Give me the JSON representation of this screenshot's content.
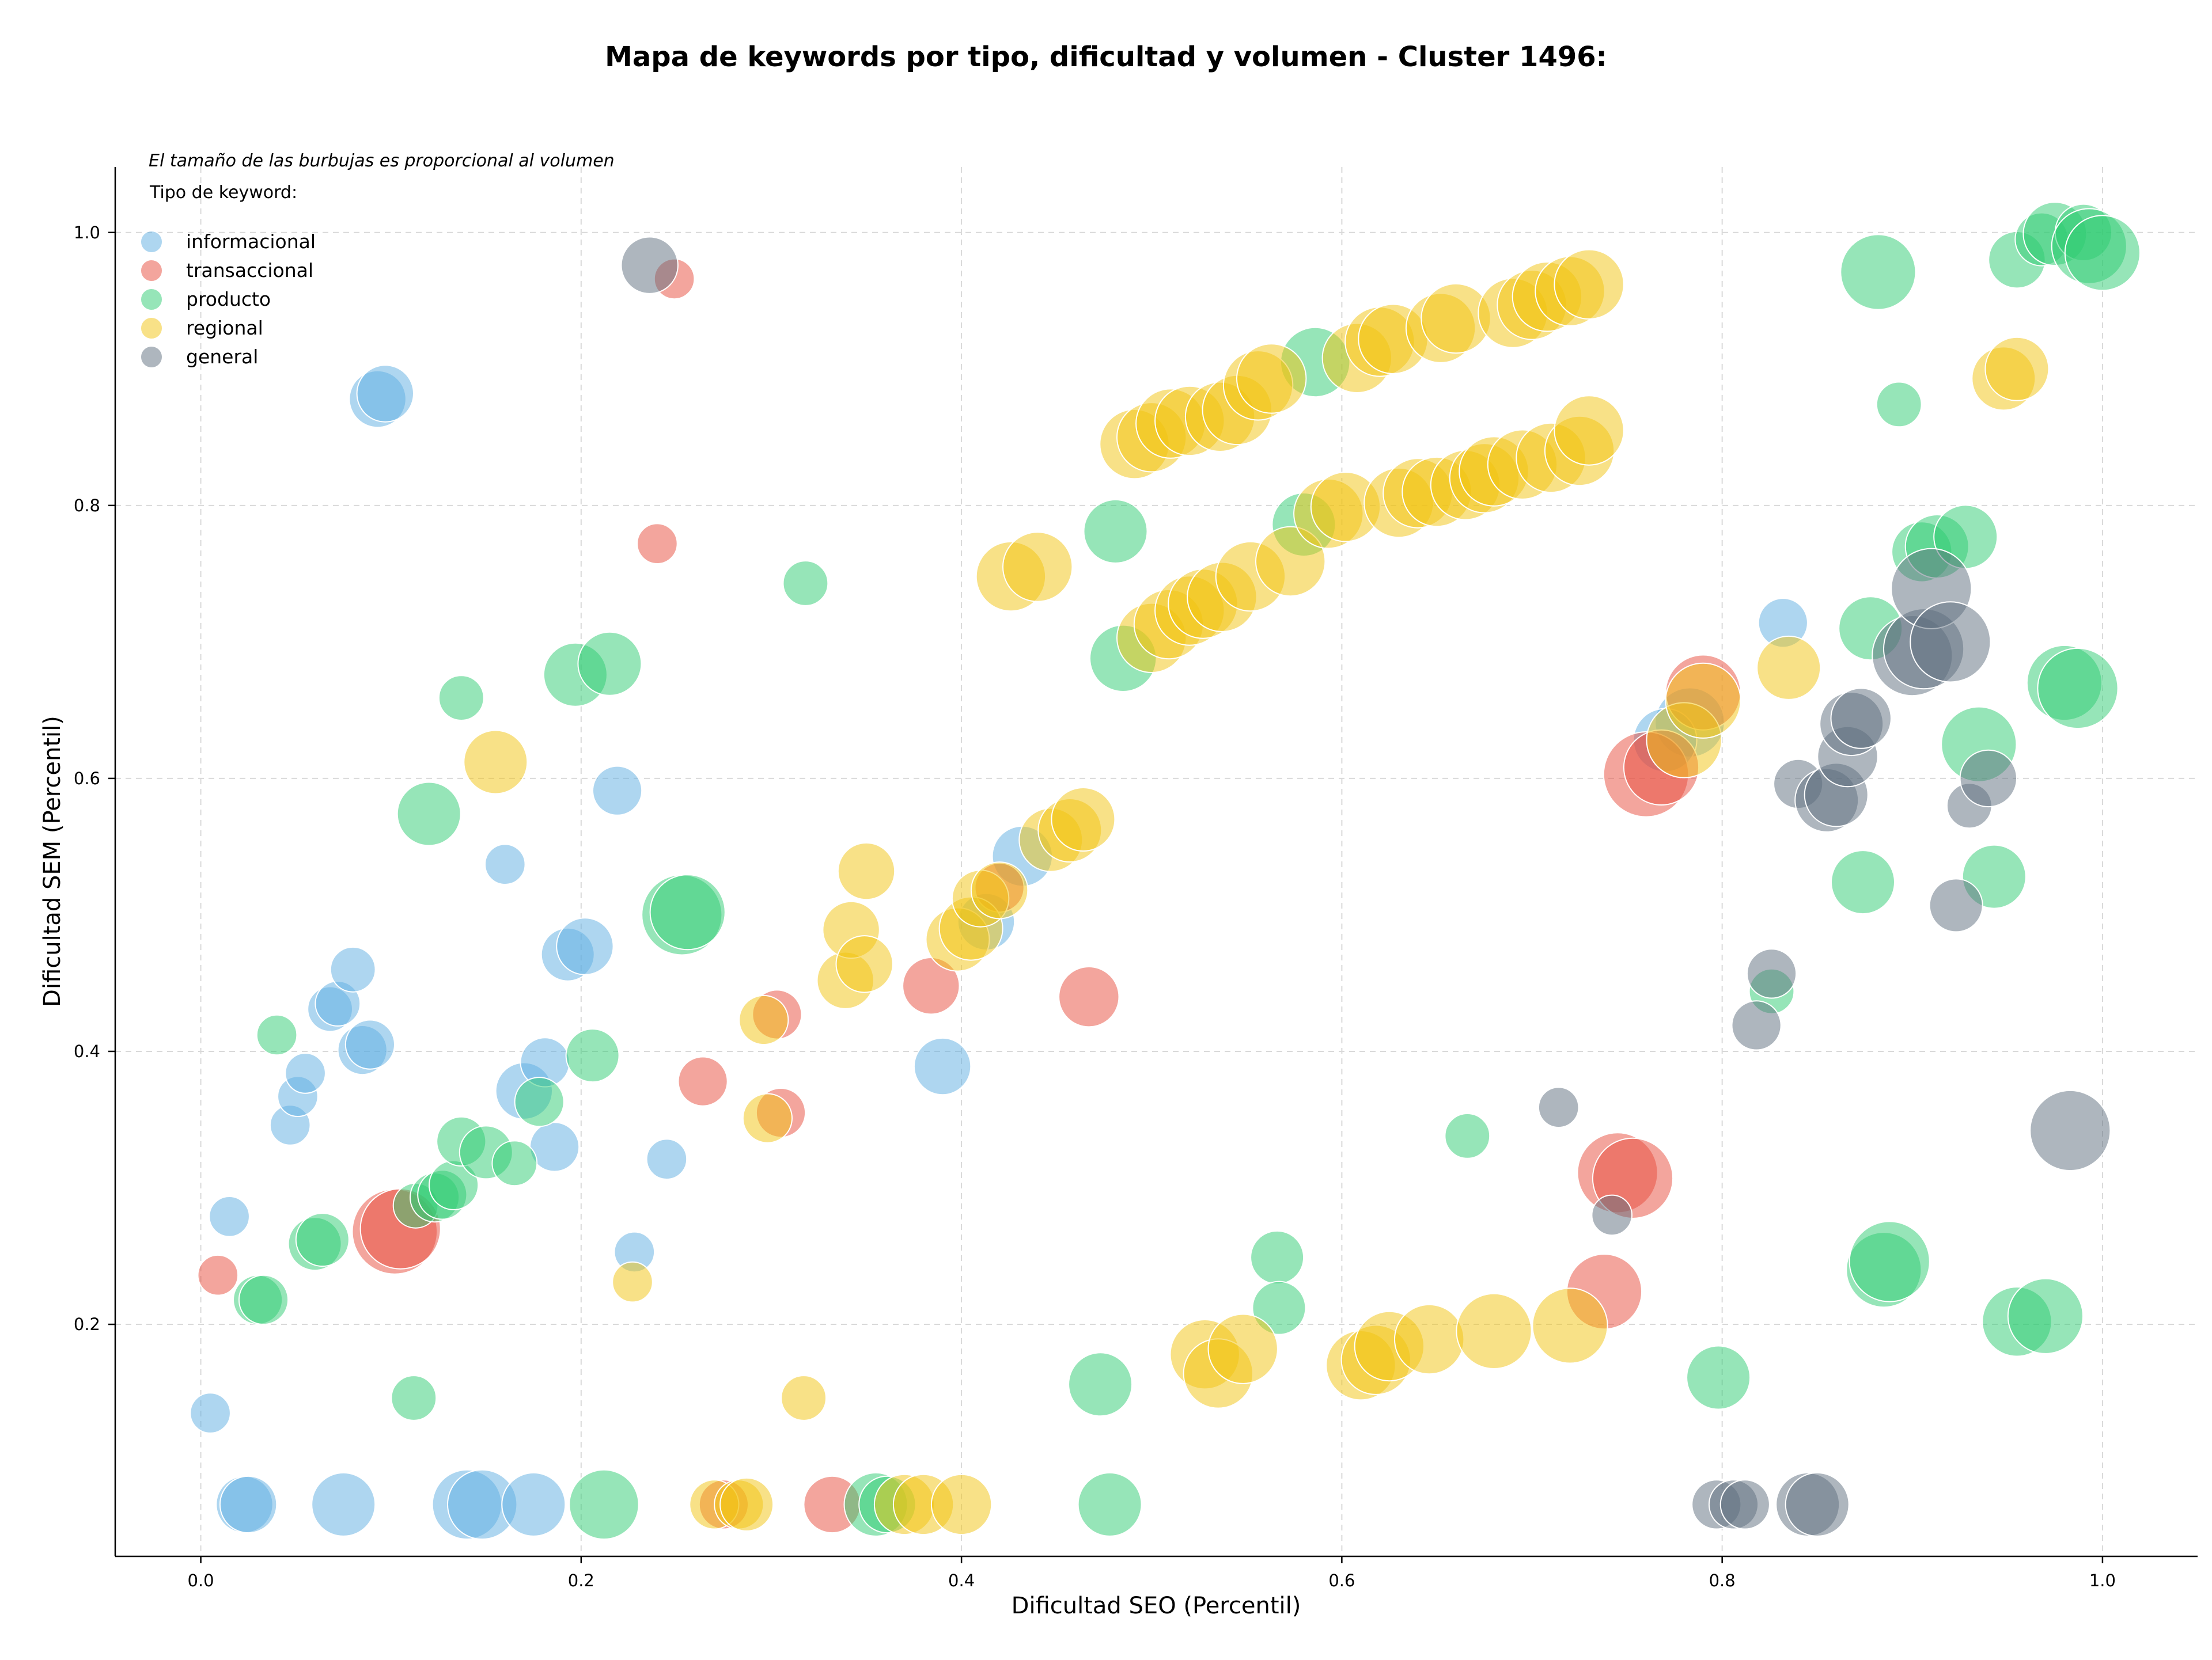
{
  "chart_data": {
    "type": "scatter",
    "title": "Mapa de keywords por tipo, dificultad y volumen - Cluster 1496:",
    "xlabel": "Dificultad SEO (Percentil)",
    "ylabel": "Dificultad SEM (Percentil)",
    "xlim": [
      -0.045,
      1.05
    ],
    "ylim": [
      0.03,
      1.048
    ],
    "xticks": [
      0.0,
      0.2,
      0.4,
      0.6,
      0.8,
      1.0
    ],
    "yticks": [
      0.2,
      0.4,
      0.6,
      0.8,
      1.0
    ],
    "x_tick_labels": [
      "0.0",
      "0.2",
      "0.4",
      "0.6",
      "0.8",
      "1.0"
    ],
    "y_tick_labels": [
      "0.2",
      "0.4",
      "0.6",
      "0.8",
      "1.0"
    ],
    "grid": true,
    "note": "El tamaño de las burbujas es proporcional al volumen",
    "legend_title": "Tipo de keyword:",
    "legend_position": "top-left",
    "size_encoding": "relative volume (proportional bubble size)",
    "series": [
      {
        "name": "informacional",
        "color": "#5DADE2",
        "points": [
          [
            0.093,
            0.878,
            4
          ],
          [
            0.097,
            0.882,
            4
          ],
          [
            0.005,
            0.135,
            2
          ],
          [
            0.015,
            0.279,
            2
          ],
          [
            0.023,
            0.068,
            4
          ],
          [
            0.025,
            0.068,
            4
          ],
          [
            0.047,
            0.346,
            2
          ],
          [
            0.051,
            0.367,
            2
          ],
          [
            0.055,
            0.384,
            2
          ],
          [
            0.068,
            0.431,
            2.5
          ],
          [
            0.072,
            0.435,
            2.5
          ],
          [
            0.08,
            0.46,
            2.5
          ],
          [
            0.085,
            0.401,
            3
          ],
          [
            0.089,
            0.405,
            3
          ],
          [
            0.075,
            0.068,
            5
          ],
          [
            0.14,
            0.068,
            6
          ],
          [
            0.148,
            0.068,
            6
          ],
          [
            0.16,
            0.537,
            2
          ],
          [
            0.17,
            0.371,
            4
          ],
          [
            0.175,
            0.068,
            5
          ],
          [
            0.181,
            0.392,
            3
          ],
          [
            0.186,
            0.33,
            3
          ],
          [
            0.193,
            0.471,
            3.5
          ],
          [
            0.202,
            0.477,
            4
          ],
          [
            0.219,
            0.591,
            3
          ],
          [
            0.228,
            0.253,
            2
          ],
          [
            0.245,
            0.321,
            2
          ],
          [
            0.39,
            0.389,
            4
          ],
          [
            0.413,
            0.495,
            4
          ],
          [
            0.432,
            0.543,
            4.5
          ],
          [
            0.832,
            0.714,
            3
          ],
          [
            0.783,
            0.641,
            6
          ],
          [
            0.77,
            0.628,
            5
          ]
        ]
      },
      {
        "name": "transaccional",
        "color": "#E74C3C",
        "points": [
          [
            0.009,
            0.236,
            2
          ],
          [
            0.102,
            0.268,
            9
          ],
          [
            0.105,
            0.27,
            8
          ],
          [
            0.24,
            0.772,
            2
          ],
          [
            0.249,
            0.966,
            2
          ],
          [
            0.264,
            0.378,
            3
          ],
          [
            0.275,
            0.068,
            3
          ],
          [
            0.303,
            0.427,
            3
          ],
          [
            0.305,
            0.355,
            3
          ],
          [
            0.332,
            0.068,
            4
          ],
          [
            0.384,
            0.448,
            4
          ],
          [
            0.42,
            0.52,
            3
          ],
          [
            0.467,
            0.44,
            4.5
          ],
          [
            0.738,
            0.224,
            7
          ],
          [
            0.745,
            0.311,
            8
          ],
          [
            0.753,
            0.307,
            8
          ],
          [
            0.76,
            0.603,
            9
          ],
          [
            0.768,
            0.608,
            7
          ],
          [
            0.79,
            0.663,
            7
          ]
        ]
      },
      {
        "name": "producto",
        "color": "#2ECC71",
        "points": [
          [
            0.04,
            0.412,
            2
          ],
          [
            0.03,
            0.218,
            3
          ],
          [
            0.033,
            0.218,
            3
          ],
          [
            0.06,
            0.259,
            3.5
          ],
          [
            0.064,
            0.262,
            3.5
          ],
          [
            0.112,
            0.146,
            2.5
          ],
          [
            0.113,
            0.287,
            2.5
          ],
          [
            0.12,
            0.574,
            5
          ],
          [
            0.123,
            0.293,
            3
          ],
          [
            0.127,
            0.295,
            3
          ],
          [
            0.133,
            0.302,
            3
          ],
          [
            0.137,
            0.334,
            3
          ],
          [
            0.137,
            0.659,
            2.5
          ],
          [
            0.15,
            0.326,
            3.5
          ],
          [
            0.165,
            0.318,
            2.5
          ],
          [
            0.178,
            0.363,
            3
          ],
          [
            0.197,
            0.676,
            5
          ],
          [
            0.206,
            0.397,
            3.5
          ],
          [
            0.212,
            0.068,
            6
          ],
          [
            0.215,
            0.684,
            5
          ],
          [
            0.253,
            0.5,
            8
          ],
          [
            0.256,
            0.502,
            7
          ],
          [
            0.318,
            0.743,
            2.5
          ],
          [
            0.355,
            0.068,
            5
          ],
          [
            0.361,
            0.068,
            4
          ],
          [
            0.473,
            0.156,
            5
          ],
          [
            0.478,
            0.068,
            5
          ],
          [
            0.481,
            0.781,
            5
          ],
          [
            0.485,
            0.688,
            5.5
          ],
          [
            0.566,
            0.249,
            3.5
          ],
          [
            0.567,
            0.212,
            3.5
          ],
          [
            0.58,
            0.786,
            5
          ],
          [
            0.586,
            0.905,
            6
          ],
          [
            0.666,
            0.338,
            2.5
          ],
          [
            0.798,
            0.161,
            5
          ],
          [
            0.826,
            0.444,
            2.5
          ],
          [
            0.874,
            0.524,
            5
          ],
          [
            0.878,
            0.71,
            5
          ],
          [
            0.882,
            0.971,
            7
          ],
          [
            0.885,
            0.24,
            7
          ],
          [
            0.888,
            0.246,
            8
          ],
          [
            0.893,
            0.874,
            2.5
          ],
          [
            0.905,
            0.766,
            4.5
          ],
          [
            0.913,
            0.77,
            5
          ],
          [
            0.928,
            0.777,
            5
          ],
          [
            0.935,
            0.625,
            7
          ],
          [
            0.943,
            0.528,
            5
          ],
          [
            0.955,
            0.202,
            6
          ],
          [
            0.97,
            0.206,
            7
          ],
          [
            0.955,
            0.98,
            4
          ],
          [
            0.968,
            0.995,
            3.5
          ],
          [
            0.975,
            0.999,
            5
          ],
          [
            0.98,
            0.67,
            7
          ],
          [
            0.987,
            0.666,
            8
          ],
          [
            0.99,
            1.0,
            4
          ],
          [
            0.993,
            0.99,
            7
          ],
          [
            1.0,
            0.985,
            7
          ]
        ]
      },
      {
        "name": "regional",
        "color": "#F1C40F",
        "points": [
          [
            0.155,
            0.612,
            5
          ],
          [
            0.227,
            0.231,
            2
          ],
          [
            0.27,
            0.068,
            3
          ],
          [
            0.283,
            0.068,
            3
          ],
          [
            0.287,
            0.068,
            3.5
          ],
          [
            0.296,
            0.423,
            3
          ],
          [
            0.298,
            0.351,
            3
          ],
          [
            0.317,
            0.146,
            2.5
          ],
          [
            0.339,
            0.452,
            4
          ],
          [
            0.342,
            0.489,
            4
          ],
          [
            0.349,
            0.464,
            4
          ],
          [
            0.35,
            0.532,
            4
          ],
          [
            0.37,
            0.068,
            4.5
          ],
          [
            0.38,
            0.068,
            4.5
          ],
          [
            0.398,
            0.482,
            5
          ],
          [
            0.4,
            0.068,
            4.5
          ],
          [
            0.405,
            0.49,
            5
          ],
          [
            0.41,
            0.512,
            4
          ],
          [
            0.42,
            0.518,
            4
          ],
          [
            0.426,
            0.748,
            6
          ],
          [
            0.44,
            0.755,
            6
          ],
          [
            0.447,
            0.555,
            5
          ],
          [
            0.457,
            0.562,
            5
          ],
          [
            0.464,
            0.57,
            5
          ],
          [
            0.491,
            0.845,
            6
          ],
          [
            0.5,
            0.85,
            6
          ],
          [
            0.51,
            0.86,
            6
          ],
          [
            0.52,
            0.862,
            6
          ],
          [
            0.536,
            0.865,
            6
          ],
          [
            0.545,
            0.87,
            6
          ],
          [
            0.556,
            0.888,
            6
          ],
          [
            0.563,
            0.893,
            6
          ],
          [
            0.5,
            0.703,
            6
          ],
          [
            0.509,
            0.713,
            6
          ],
          [
            0.52,
            0.723,
            6
          ],
          [
            0.527,
            0.728,
            6
          ],
          [
            0.537,
            0.733,
            6
          ],
          [
            0.552,
            0.748,
            6
          ],
          [
            0.573,
            0.759,
            6
          ],
          [
            0.593,
            0.794,
            6
          ],
          [
            0.602,
            0.799,
            6
          ],
          [
            0.608,
            0.908,
            6
          ],
          [
            0.62,
            0.92,
            6
          ],
          [
            0.627,
            0.922,
            6
          ],
          [
            0.63,
            0.802,
            6
          ],
          [
            0.64,
            0.809,
            6
          ],
          [
            0.65,
            0.81,
            6
          ],
          [
            0.652,
            0.93,
            6
          ],
          [
            0.66,
            0.937,
            6
          ],
          [
            0.665,
            0.815,
            6
          ],
          [
            0.675,
            0.82,
            6
          ],
          [
            0.68,
            0.825,
            6
          ],
          [
            0.69,
            0.941,
            6
          ],
          [
            0.695,
            0.83,
            6
          ],
          [
            0.7,
            0.947,
            6
          ],
          [
            0.708,
            0.953,
            6
          ],
          [
            0.71,
            0.835,
            6
          ],
          [
            0.72,
            0.957,
            6
          ],
          [
            0.725,
            0.84,
            6
          ],
          [
            0.73,
            0.855,
            6
          ],
          [
            0.73,
            0.962,
            6
          ],
          [
            0.528,
            0.178,
            6
          ],
          [
            0.535,
            0.164,
            6
          ],
          [
            0.548,
            0.182,
            6
          ],
          [
            0.61,
            0.17,
            6
          ],
          [
            0.618,
            0.174,
            6
          ],
          [
            0.625,
            0.184,
            6
          ],
          [
            0.646,
            0.189,
            6
          ],
          [
            0.68,
            0.195,
            7
          ],
          [
            0.72,
            0.199,
            7
          ],
          [
            0.78,
            0.628,
            7
          ],
          [
            0.79,
            0.657,
            7
          ],
          [
            0.835,
            0.681,
            5
          ],
          [
            0.948,
            0.893,
            5
          ],
          [
            0.955,
            0.9,
            5
          ]
        ]
      },
      {
        "name": "general",
        "color": "#5D6D7E",
        "points": [
          [
            0.236,
            0.976,
            4
          ],
          [
            0.714,
            0.359,
            2
          ],
          [
            0.742,
            0.28,
            2
          ],
          [
            0.797,
            0.068,
            3
          ],
          [
            0.806,
            0.068,
            3
          ],
          [
            0.812,
            0.068,
            3
          ],
          [
            0.818,
            0.419,
            3
          ],
          [
            0.826,
            0.457,
            3
          ],
          [
            0.84,
            0.596,
            3
          ],
          [
            0.845,
            0.068,
            5
          ],
          [
            0.85,
            0.068,
            5
          ],
          [
            0.855,
            0.584,
            5
          ],
          [
            0.86,
            0.588,
            5
          ],
          [
            0.866,
            0.616,
            4.5
          ],
          [
            0.868,
            0.64,
            5
          ],
          [
            0.873,
            0.644,
            4.5
          ],
          [
            0.9,
            0.69,
            8
          ],
          [
            0.906,
            0.695,
            8
          ],
          [
            0.91,
            0.739,
            8
          ],
          [
            0.92,
            0.7,
            8
          ],
          [
            0.923,
            0.507,
            3.5
          ],
          [
            0.93,
            0.58,
            2.5
          ],
          [
            0.94,
            0.6,
            4
          ],
          [
            0.983,
            0.342,
            8
          ]
        ]
      }
    ]
  }
}
